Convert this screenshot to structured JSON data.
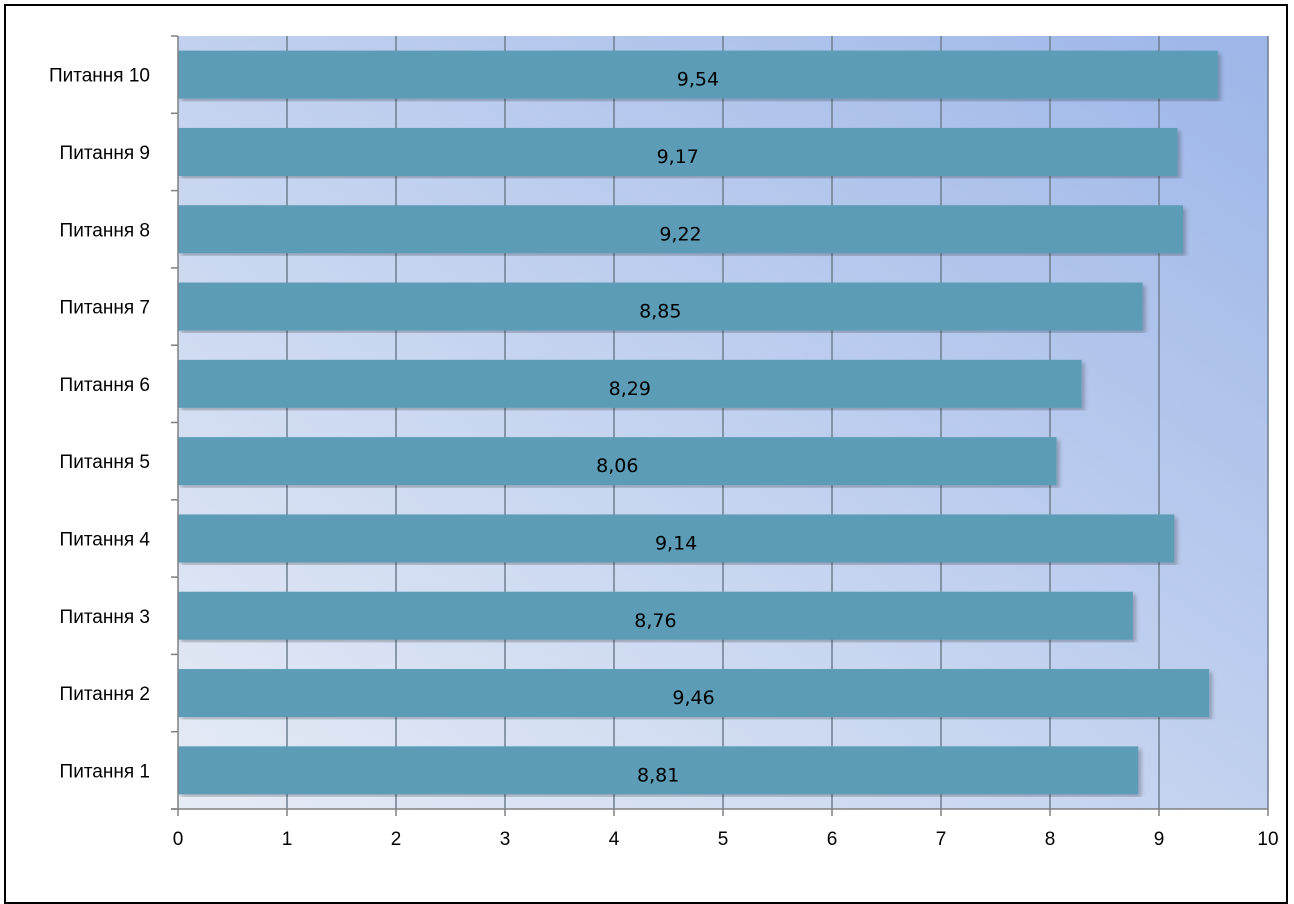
{
  "chart_data": {
    "type": "bar",
    "orientation": "horizontal",
    "categories": [
      "Питання 1",
      "Питання 2",
      "Питання 3",
      "Питання 4",
      "Питання 5",
      "Питання 6",
      "Питання 7",
      "Питання 8",
      "Питання 9",
      "Питання 10"
    ],
    "values": [
      8.81,
      9.46,
      8.76,
      9.14,
      8.06,
      8.29,
      8.85,
      9.22,
      9.17,
      9.54
    ],
    "value_labels": [
      "8,81",
      "9,46",
      "8,76",
      "9,14",
      "8,06",
      "8,29",
      "8,85",
      "9,22",
      "9,17",
      "9,54"
    ],
    "x_ticks": [
      "0",
      "1",
      "2",
      "3",
      "4",
      "5",
      "6",
      "7",
      "8",
      "9",
      "10"
    ],
    "xlim": [
      0,
      10
    ],
    "grid": "vertical",
    "legend": "none",
    "colors": {
      "bar": "#5b9cb6",
      "bar_top": "#4e93b4",
      "plot_bg_top": "#9db6e8",
      "plot_bg_bottom": "#e6ecf6",
      "grid": "#6f7f8f"
    }
  }
}
